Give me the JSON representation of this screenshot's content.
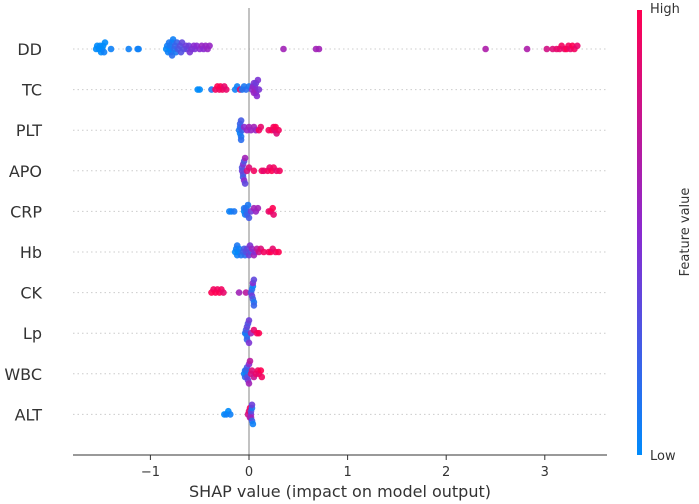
{
  "chart_data": {
    "type": "scatter",
    "subtype": "shap-beeswarm",
    "title": "",
    "xlabel": "SHAP value (impact on model output)",
    "ylabel": "",
    "xlim": [
      -1.79,
      3.63
    ],
    "xticks": [
      -1,
      0,
      1,
      2,
      3
    ],
    "xtick_labels": [
      "−1",
      "0",
      "1",
      "2",
      "3"
    ],
    "grid": "dotted horizontal row lines",
    "colorbar": {
      "label": "Feature value",
      "high_label": "High",
      "low_label": "Low",
      "low_color": "#008bfb",
      "mid_color": "#8a2ad0",
      "high_color": "#ff0052"
    },
    "features": [
      {
        "name": "DD",
        "points": [
          [
            -1.55,
            0
          ],
          [
            -1.54,
            0
          ],
          [
            -1.52,
            0
          ],
          [
            -1.51,
            0
          ],
          [
            -1.5,
            0
          ],
          [
            -1.49,
            0
          ],
          [
            -1.48,
            0
          ],
          [
            -1.47,
            0.05
          ],
          [
            -1.46,
            0
          ],
          [
            -1.4,
            0.05
          ],
          [
            -1.22,
            0.05
          ],
          [
            -1.13,
            0.05
          ],
          [
            -1.12,
            0.05
          ],
          [
            -0.84,
            0
          ],
          [
            -0.83,
            0.05
          ],
          [
            -0.82,
            0.05
          ],
          [
            -0.81,
            0.1
          ],
          [
            -0.8,
            0
          ],
          [
            -0.8,
            0.1
          ],
          [
            -0.79,
            0.05
          ],
          [
            -0.78,
            0.1
          ],
          [
            -0.78,
            0.15
          ],
          [
            -0.77,
            0.05
          ],
          [
            -0.76,
            0.15
          ],
          [
            -0.75,
            0.2
          ],
          [
            -0.74,
            0.1
          ],
          [
            -0.73,
            0.2
          ],
          [
            -0.72,
            0.25
          ],
          [
            -0.7,
            0.3
          ],
          [
            -0.69,
            0.3
          ],
          [
            -0.68,
            0.35
          ],
          [
            -0.66,
            0.3
          ],
          [
            -0.64,
            0.4
          ],
          [
            -0.63,
            0.35
          ],
          [
            -0.61,
            0.4
          ],
          [
            -0.6,
            0.45
          ],
          [
            -0.58,
            0.45
          ],
          [
            -0.56,
            0.5
          ],
          [
            -0.55,
            0.45
          ],
          [
            -0.53,
            0.5
          ],
          [
            -0.5,
            0.5
          ],
          [
            -0.48,
            0.55
          ],
          [
            -0.46,
            0.5
          ],
          [
            -0.44,
            0.55
          ],
          [
            -0.42,
            0.55
          ],
          [
            -0.4,
            0.55
          ],
          [
            0.35,
            0.6
          ],
          [
            0.68,
            0.6
          ],
          [
            0.71,
            0.6
          ],
          [
            2.4,
            0.65
          ],
          [
            2.82,
            0.65
          ],
          [
            3.02,
            0.8
          ],
          [
            3.08,
            0.85
          ],
          [
            3.12,
            0.9
          ],
          [
            3.15,
            0.9
          ],
          [
            3.17,
            0.95
          ],
          [
            3.2,
            0.9
          ],
          [
            3.22,
            1
          ],
          [
            3.24,
            0.95
          ],
          [
            3.26,
            0.9
          ],
          [
            3.28,
            1
          ],
          [
            3.3,
            0.95
          ],
          [
            3.33,
            0.9
          ]
        ]
      },
      {
        "name": "TC",
        "points": [
          [
            -0.52,
            0
          ],
          [
            -0.5,
            0
          ],
          [
            -0.38,
            0.1
          ],
          [
            -0.34,
            0.95
          ],
          [
            -0.32,
            1
          ],
          [
            -0.3,
            0.95
          ],
          [
            -0.29,
            1
          ],
          [
            -0.27,
            0.95
          ],
          [
            -0.25,
            0.9
          ],
          [
            -0.23,
            0.9
          ],
          [
            -0.14,
            0.05
          ],
          [
            -0.12,
            0.05
          ],
          [
            -0.09,
            0.9
          ],
          [
            -0.07,
            0.1
          ],
          [
            -0.05,
            0.1
          ],
          [
            -0.03,
            0.15
          ],
          [
            0.0,
            0.1
          ],
          [
            0.03,
            0.5
          ],
          [
            0.04,
            0.55
          ],
          [
            0.05,
            0.55
          ],
          [
            0.05,
            0.45
          ],
          [
            0.06,
            0.6
          ],
          [
            0.06,
            0.5
          ],
          [
            0.07,
            0.55
          ],
          [
            0.07,
            0.4
          ],
          [
            0.08,
            0.5
          ],
          [
            0.09,
            0.45
          ],
          [
            0.1,
            0.45
          ]
        ]
      },
      {
        "name": "PLT",
        "points": [
          [
            -0.1,
            0.1
          ],
          [
            -0.09,
            0.15
          ],
          [
            -0.09,
            0.05
          ],
          [
            -0.09,
            0.2
          ],
          [
            -0.08,
            0.1
          ],
          [
            -0.08,
            0.25
          ],
          [
            -0.08,
            0.15
          ],
          [
            -0.07,
            0.2
          ],
          [
            -0.05,
            0.5
          ],
          [
            -0.02,
            0.55
          ],
          [
            0.0,
            0.6
          ],
          [
            0.02,
            0.55
          ],
          [
            0.05,
            0.6
          ],
          [
            0.07,
            0.55
          ],
          [
            0.1,
            0.95
          ],
          [
            0.12,
            0.9
          ],
          [
            0.2,
            0.95
          ],
          [
            0.23,
            1
          ],
          [
            0.25,
            0.95
          ],
          [
            0.26,
            0.9
          ],
          [
            0.27,
            1
          ],
          [
            0.28,
            0.85
          ],
          [
            0.3,
            0.95
          ]
        ]
      },
      {
        "name": "APO",
        "points": [
          [
            -0.07,
            0.4
          ],
          [
            -0.07,
            0.3
          ],
          [
            -0.06,
            0.35
          ],
          [
            -0.06,
            0.45
          ],
          [
            -0.06,
            0.25
          ],
          [
            -0.05,
            0.3
          ],
          [
            -0.05,
            0.5
          ],
          [
            -0.04,
            0.6
          ],
          [
            -0.04,
            0.35
          ],
          [
            -0.02,
            0.8
          ],
          [
            0.0,
            0.85
          ],
          [
            0.05,
            0.95
          ],
          [
            0.13,
            0.95
          ],
          [
            0.15,
            0.9
          ],
          [
            0.19,
            0.95
          ],
          [
            0.21,
            0.9
          ],
          [
            0.23,
            1
          ],
          [
            0.25,
            0.95
          ],
          [
            0.28,
            0.9
          ],
          [
            0.31,
            0.95
          ]
        ]
      },
      {
        "name": "CRP",
        "points": [
          [
            -0.2,
            0.05
          ],
          [
            -0.18,
            0.05
          ],
          [
            -0.15,
            0.1
          ],
          [
            -0.05,
            0.0
          ],
          [
            -0.05,
            0.1
          ],
          [
            -0.04,
            0.05
          ],
          [
            -0.03,
            0.1
          ],
          [
            -0.03,
            0.15
          ],
          [
            -0.02,
            0.2
          ],
          [
            -0.01,
            0.1
          ],
          [
            0.0,
            0.25
          ],
          [
            0.02,
            0.4
          ],
          [
            0.05,
            0.6
          ],
          [
            0.07,
            0.55
          ],
          [
            0.09,
            0.6
          ],
          [
            0.2,
            0.9
          ],
          [
            0.22,
            0.95
          ],
          [
            0.24,
            1
          ],
          [
            0.25,
            0.9
          ]
        ]
      },
      {
        "name": "Hb",
        "points": [
          [
            -0.14,
            0.0
          ],
          [
            -0.13,
            0.05
          ],
          [
            -0.12,
            0.05
          ],
          [
            -0.12,
            0.1
          ],
          [
            -0.11,
            0.0
          ],
          [
            -0.1,
            0.05
          ],
          [
            -0.08,
            0.1
          ],
          [
            -0.06,
            0.2
          ],
          [
            -0.05,
            0.25
          ],
          [
            -0.04,
            0.15
          ],
          [
            -0.03,
            0.3
          ],
          [
            -0.02,
            0.35
          ],
          [
            0.0,
            0.4
          ],
          [
            0.01,
            0.45
          ],
          [
            0.02,
            0.3
          ],
          [
            0.03,
            0.55
          ],
          [
            0.05,
            0.6
          ],
          [
            0.06,
            0.5
          ],
          [
            0.08,
            0.7
          ],
          [
            0.1,
            0.8
          ],
          [
            0.12,
            0.85
          ],
          [
            0.15,
            0.95
          ],
          [
            0.2,
            0.95
          ],
          [
            0.22,
            1
          ],
          [
            0.24,
            0.9
          ],
          [
            0.27,
            0.95
          ],
          [
            0.3,
            1
          ]
        ]
      },
      {
        "name": "CK",
        "points": [
          [
            -0.38,
            1
          ],
          [
            -0.36,
            0.95
          ],
          [
            -0.34,
            1
          ],
          [
            -0.32,
            0.95
          ],
          [
            -0.3,
            1
          ],
          [
            -0.28,
            0.95
          ],
          [
            -0.26,
            0.9
          ],
          [
            -0.1,
            0.6
          ],
          [
            -0.03,
            0.7
          ],
          [
            0.02,
            0.3
          ],
          [
            0.03,
            0.15
          ],
          [
            0.03,
            0.4
          ],
          [
            0.04,
            0.05
          ],
          [
            0.04,
            0.25
          ],
          [
            0.04,
            0.5
          ],
          [
            0.05,
            0.1
          ],
          [
            0.05,
            0.35
          ],
          [
            0.05,
            0.2
          ]
        ]
      },
      {
        "name": "Lp",
        "points": [
          [
            -0.04,
            0.15
          ],
          [
            -0.03,
            0.05
          ],
          [
            -0.03,
            0.25
          ],
          [
            -0.02,
            0.1
          ],
          [
            -0.02,
            0.35
          ],
          [
            -0.02,
            0.2
          ],
          [
            -0.01,
            0.3
          ],
          [
            0.0,
            0.45
          ],
          [
            0.0,
            0.4
          ],
          [
            0.02,
            0.6
          ],
          [
            0.05,
            0.9
          ],
          [
            0.08,
            0.95
          ],
          [
            0.1,
            1
          ]
        ]
      },
      {
        "name": "WBC",
        "points": [
          [
            -0.05,
            0.05
          ],
          [
            -0.04,
            0.1
          ],
          [
            -0.04,
            0.2
          ],
          [
            -0.03,
            0.0
          ],
          [
            -0.03,
            0.15
          ],
          [
            -0.02,
            0.3
          ],
          [
            -0.02,
            0.25
          ],
          [
            -0.01,
            0.4
          ],
          [
            0.0,
            0.5
          ],
          [
            0.0,
            0.6
          ],
          [
            0.01,
            0.7
          ],
          [
            0.02,
            0.8
          ],
          [
            0.03,
            0.85
          ],
          [
            0.05,
            0.75
          ],
          [
            0.07,
            0.9
          ],
          [
            0.09,
            0.95
          ],
          [
            0.1,
            0.9
          ],
          [
            0.12,
            1
          ],
          [
            0.13,
            0.95
          ]
        ]
      },
      {
        "name": "ALT",
        "points": [
          [
            -0.25,
            0.0
          ],
          [
            -0.23,
            0.05
          ],
          [
            -0.21,
            0.0
          ],
          [
            -0.19,
            0.05
          ],
          [
            -0.01,
            0.8
          ],
          [
            0.0,
            0.9
          ],
          [
            0.01,
            0.7
          ],
          [
            0.01,
            0.95
          ],
          [
            0.02,
            0.5
          ],
          [
            0.02,
            0.3
          ],
          [
            0.02,
            0.6
          ],
          [
            0.03,
            0.1
          ],
          [
            0.03,
            0.2
          ],
          [
            0.03,
            0.4
          ],
          [
            0.04,
            0.05
          ]
        ]
      }
    ]
  }
}
